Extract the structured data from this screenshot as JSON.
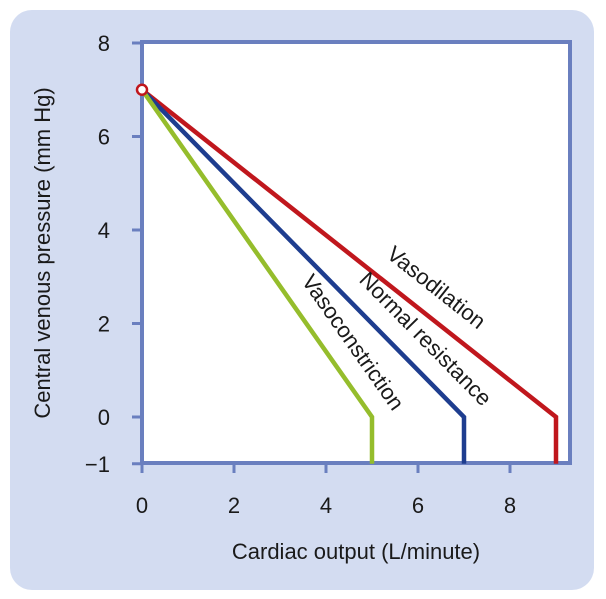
{
  "chart_data": {
    "type": "line",
    "title": "",
    "xlabel": "Cardiac output (L/minute)",
    "ylabel": "Central venous pressure (mm Hg)",
    "xlim": [
      0,
      9.5
    ],
    "ylim": [
      -1,
      8
    ],
    "x_ticks": [
      "0",
      "2",
      "4",
      "6",
      "8"
    ],
    "y_ticks": [
      "8",
      "6",
      "4",
      "2",
      "0",
      "−1"
    ],
    "grid": false,
    "legend": "none",
    "series": [
      {
        "name": "Vasodilation",
        "color": "#c0171d",
        "points": [
          [
            0,
            7
          ],
          [
            9,
            0
          ],
          [
            9,
            -1
          ]
        ]
      },
      {
        "name": "Normal resistance",
        "color": "#1e3d8f",
        "points": [
          [
            0,
            7
          ],
          [
            7,
            0
          ],
          [
            7,
            -1
          ]
        ]
      },
      {
        "name": "Vasoconstriction",
        "color": "#95bd2c",
        "points": [
          [
            0,
            7
          ],
          [
            5,
            0
          ],
          [
            5,
            -1
          ]
        ]
      }
    ],
    "annotations": [
      {
        "type": "open-circle",
        "x": 0,
        "y": 7,
        "color": "#c0171d"
      }
    ]
  }
}
